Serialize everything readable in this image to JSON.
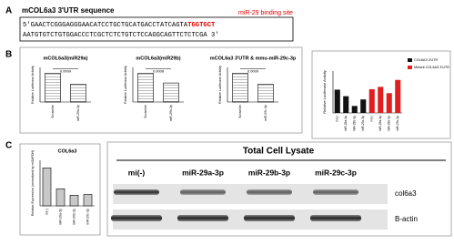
{
  "panel_a": {
    "label": "A",
    "title": "mCOL6a3 3'UTR sequence",
    "annotation": "miR-29 binding site",
    "line1": "5'GAACTCGGGAGGGAACATCCTGCTGCATGACCTATCAGTA",
    "line1_highlight": "TGGTGCT",
    "line2": "AATGTGTCTGTGGACCCTCGCTCTCTGTCTCCAGGCAGTTCTCTCGA 3'"
  },
  "panel_b": {
    "label": "B",
    "charts": [
      {
        "title": "mCOL6a3(miR29a)",
        "y_label": "Relative Luciferase Activity",
        "categories": [
          "Scramble",
          "miR-29a-3p"
        ],
        "values": [
          1.0,
          0.62
        ],
        "color": "#d0d0d0",
        "ylim": [
          0,
          1.2
        ],
        "pvalue": "0.0009"
      },
      {
        "title": "mCOL6a3(miR29b)",
        "y_label": "Relative Luciferase Activity",
        "categories": [
          "Scramble",
          "miR-29b-3p"
        ],
        "values": [
          1.0,
          0.66
        ],
        "color": "#d0d0d0",
        "ylim": [
          0,
          1.2
        ],
        "pvalue": "0.0008"
      },
      {
        "title": "mCOL6a3 3'UTR & mmu-miR-29c-3p",
        "y_label": "Relative Luciferase Activity",
        "categories": [
          "Scramble",
          "miR-29c-3p"
        ],
        "values": [
          1.0,
          0.62
        ],
        "color": "#d0d0d0",
        "ylim": [
          0,
          1.2
        ],
        "pvalue": "0.0009"
      }
    ],
    "luciferase": {
      "y_label": "Relative Luciferase Activity",
      "ylim": [
        0,
        1.8
      ],
      "categories": [
        "mi(-)",
        "miR-29a-3p",
        "miR-29b-3p",
        "miR-29c-3p"
      ],
      "series": [
        {
          "name": "COL6A3 3'UTR",
          "color": "#111111",
          "values": [
            1.0,
            0.72,
            0.3,
            0.58
          ]
        },
        {
          "name": "Mutant COL6A3 3'UTR",
          "color": "#e02020",
          "values": [
            1.02,
            1.12,
            0.85,
            1.42
          ]
        }
      ]
    }
  },
  "panel_c": {
    "label": "C",
    "chart": {
      "title": "COL6a3",
      "y_label": "Relative Expression (normalized by mGAPDH)",
      "categories": [
        "mi(-)",
        "miR-29a-3p",
        "miR-29b-3p",
        "miR-29c-3p"
      ],
      "values": [
        1.0,
        0.45,
        0.28,
        0.3
      ],
      "color": "#c8c8c8",
      "ylim": [
        0,
        1.2
      ]
    },
    "blot": {
      "header": "Total Cell Lysate",
      "lanes": [
        "mi(-)",
        "miR-29a-3p",
        "miR-29b-3p",
        "miR-29c-3p"
      ],
      "rows": [
        "col6a3",
        "B-actin"
      ]
    }
  }
}
